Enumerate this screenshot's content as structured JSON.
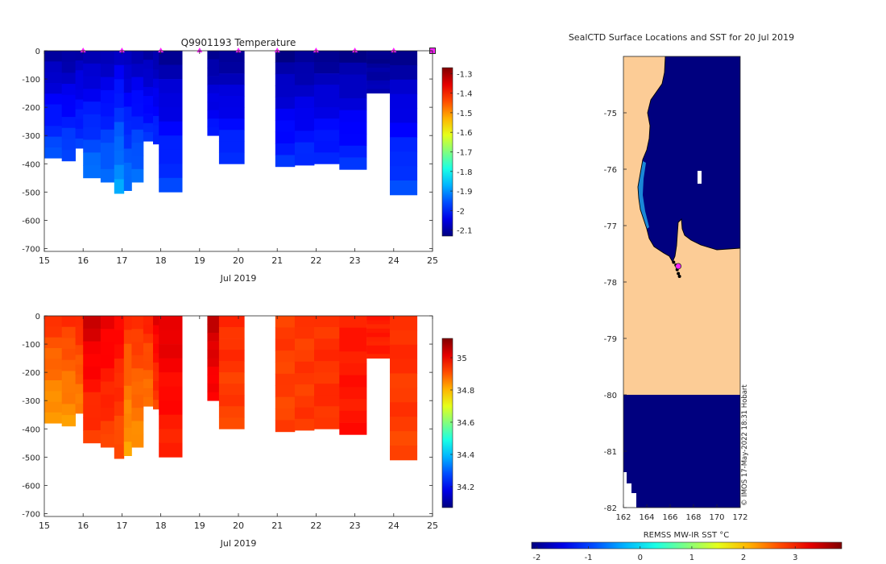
{
  "chart_data": [
    {
      "type": "heatmap",
      "title": "Q9901193  Temperature",
      "xlabel": "Jul 2019",
      "ylabel": "",
      "xlim": [
        15,
        25
      ],
      "ylim": [
        -710,
        0
      ],
      "x_ticks": [
        "15",
        "16",
        "17",
        "18",
        "19",
        "20",
        "21",
        "22",
        "23",
        "24",
        "25"
      ],
      "y_ticks": [
        "0",
        "-100",
        "-200",
        "-300",
        "-400",
        "-500",
        "-600",
        "-700"
      ],
      "colorbar": {
        "min": -2.13,
        "max": -1.27,
        "ticks": [
          "-1.3",
          "-1.4",
          "-1.5",
          "-1.6",
          "-1.7",
          "-1.8",
          "-1.9",
          "-2",
          "-2.1"
        ]
      },
      "markers": [
        16,
        17,
        18,
        19,
        20,
        21,
        22,
        23,
        24
      ],
      "end_marker": 25,
      "profiles": [
        {
          "x0": 15.0,
          "x1": 15.45,
          "depth": 380,
          "surface": -2.12,
          "bottom": -1.95
        },
        {
          "x0": 15.45,
          "x1": 15.8,
          "depth": 390,
          "surface": -2.12,
          "bottom": -1.95
        },
        {
          "x0": 15.8,
          "x1": 16.0,
          "depth": 345,
          "surface": -2.1,
          "bottom": -1.97
        },
        {
          "x0": 16.0,
          "x1": 16.45,
          "depth": 450,
          "surface": -2.11,
          "bottom": -1.92
        },
        {
          "x0": 16.45,
          "x1": 16.8,
          "depth": 465,
          "surface": -2.1,
          "bottom": -1.92
        },
        {
          "x0": 16.8,
          "x1": 17.05,
          "depth": 505,
          "surface": -2.08,
          "bottom": -1.88
        },
        {
          "x0": 17.05,
          "x1": 17.25,
          "depth": 495,
          "surface": -2.1,
          "bottom": -1.92
        },
        {
          "x0": 17.25,
          "x1": 17.55,
          "depth": 465,
          "surface": -2.1,
          "bottom": -1.92
        },
        {
          "x0": 17.55,
          "x1": 17.8,
          "depth": 320,
          "surface": -2.11,
          "bottom": -1.98
        },
        {
          "x0": 17.8,
          "x1": 17.95,
          "depth": 330,
          "surface": -2.11,
          "bottom": -1.98
        },
        {
          "x0": 17.95,
          "x1": 18.55,
          "depth": 500,
          "surface": -2.12,
          "bottom": -1.96
        },
        {
          "x0": 19.2,
          "x1": 19.5,
          "depth": 300,
          "surface": -2.13,
          "bottom": -2.0
        },
        {
          "x0": 19.5,
          "x1": 20.15,
          "depth": 400,
          "surface": -2.13,
          "bottom": -1.97
        },
        {
          "x0": 20.95,
          "x1": 21.45,
          "depth": 410,
          "surface": -2.13,
          "bottom": -1.98
        },
        {
          "x0": 21.45,
          "x1": 21.95,
          "depth": 405,
          "surface": -2.13,
          "bottom": -1.98
        },
        {
          "x0": 21.95,
          "x1": 22.6,
          "depth": 400,
          "surface": -2.13,
          "bottom": -1.98
        },
        {
          "x0": 22.6,
          "x1": 23.3,
          "depth": 420,
          "surface": -2.13,
          "bottom": -1.98
        },
        {
          "x0": 23.3,
          "x1": 23.9,
          "depth": 150,
          "surface": -2.13,
          "bottom": -2.08
        },
        {
          "x0": 23.9,
          "x1": 24.6,
          "depth": 510,
          "surface": -2.13,
          "bottom": -1.95
        }
      ]
    },
    {
      "type": "heatmap",
      "title": "",
      "xlabel": "Jul 2019",
      "ylabel": "",
      "xlim": [
        15,
        25
      ],
      "ylim": [
        -710,
        0
      ],
      "x_ticks": [
        "15",
        "16",
        "17",
        "18",
        "19",
        "20",
        "21",
        "22",
        "23",
        "24",
        "25"
      ],
      "y_ticks": [
        "0",
        "-100",
        "-200",
        "-300",
        "-400",
        "-500",
        "-600",
        "-700"
      ],
      "colorbar": {
        "min": 34.07,
        "max": 35.12,
        "ticks": [
          "35",
          "34.8",
          "34.6",
          "34.4",
          "34.2"
        ]
      },
      "profiles": [
        {
          "x0": 15.0,
          "x1": 15.45,
          "depth": 380,
          "surface": 34.95,
          "bottom": 34.82
        },
        {
          "x0": 15.45,
          "x1": 15.8,
          "depth": 390,
          "surface": 34.95,
          "bottom": 34.83
        },
        {
          "x0": 15.8,
          "x1": 16.0,
          "depth": 345,
          "surface": 34.97,
          "bottom": 34.85
        },
        {
          "x0": 16.0,
          "x1": 16.45,
          "depth": 450,
          "surface": 35.05,
          "bottom": 34.92
        },
        {
          "x0": 16.45,
          "x1": 16.8,
          "depth": 465,
          "surface": 35.02,
          "bottom": 34.92
        },
        {
          "x0": 16.8,
          "x1": 17.05,
          "depth": 505,
          "surface": 35.0,
          "bottom": 34.9
        },
        {
          "x0": 17.05,
          "x1": 17.25,
          "depth": 495,
          "surface": 34.95,
          "bottom": 34.82
        },
        {
          "x0": 17.25,
          "x1": 17.55,
          "depth": 465,
          "surface": 34.96,
          "bottom": 34.84
        },
        {
          "x0": 17.55,
          "x1": 17.8,
          "depth": 320,
          "surface": 34.97,
          "bottom": 34.86
        },
        {
          "x0": 17.8,
          "x1": 17.95,
          "depth": 330,
          "surface": 35.02,
          "bottom": 34.92
        },
        {
          "x0": 17.95,
          "x1": 18.55,
          "depth": 500,
          "surface": 35.03,
          "bottom": 34.95
        },
        {
          "x0": 19.2,
          "x1": 19.5,
          "depth": 300,
          "surface": 35.06,
          "bottom": 34.98
        },
        {
          "x0": 19.5,
          "x1": 20.15,
          "depth": 400,
          "surface": 34.95,
          "bottom": 34.92
        },
        {
          "x0": 20.95,
          "x1": 21.45,
          "depth": 410,
          "surface": 34.93,
          "bottom": 34.92
        },
        {
          "x0": 21.45,
          "x1": 21.95,
          "depth": 405,
          "surface": 34.93,
          "bottom": 34.93
        },
        {
          "x0": 21.95,
          "x1": 22.6,
          "depth": 400,
          "surface": 34.94,
          "bottom": 34.94
        },
        {
          "x0": 22.6,
          "x1": 23.3,
          "depth": 420,
          "surface": 34.96,
          "bottom": 34.97
        },
        {
          "x0": 23.3,
          "x1": 23.9,
          "depth": 150,
          "surface": 34.96,
          "bottom": 34.96
        },
        {
          "x0": 23.9,
          "x1": 24.6,
          "depth": 510,
          "surface": 34.95,
          "bottom": 34.92
        }
      ]
    },
    {
      "type": "heatmap",
      "title": "SealCTD Surface Locations and SST for 20 Jul 2019",
      "xlabel": "",
      "ylabel": "",
      "xlim": [
        162,
        172
      ],
      "ylim": [
        -82,
        -74
      ],
      "x_ticks": [
        "162",
        "164",
        "166",
        "168",
        "170",
        "172"
      ],
      "y_ticks": [
        "-75",
        "-76",
        "-77",
        "-78",
        "-79",
        "-80",
        "-81",
        "-82"
      ],
      "colorbar_label": "REMSS MW-IR SST °C",
      "colorbar": {
        "min": -2.1,
        "max": 3.9,
        "ticks": [
          "-2",
          "-1",
          "0",
          "1",
          "2",
          "3"
        ]
      },
      "sea_surface_value": -2.0,
      "land_color": "#fccc96",
      "sea_color": "#00007f",
      "seal_track": [
        [
          166.3,
          -77.65
        ],
        [
          166.5,
          -77.7
        ],
        [
          166.6,
          -77.78
        ],
        [
          166.7,
          -77.85
        ],
        [
          166.8,
          -77.9
        ]
      ],
      "latest_position": [
        166.7,
        -77.72
      ],
      "watermark": "© IMOS 17-May-2022 18:31 Hobart"
    }
  ]
}
